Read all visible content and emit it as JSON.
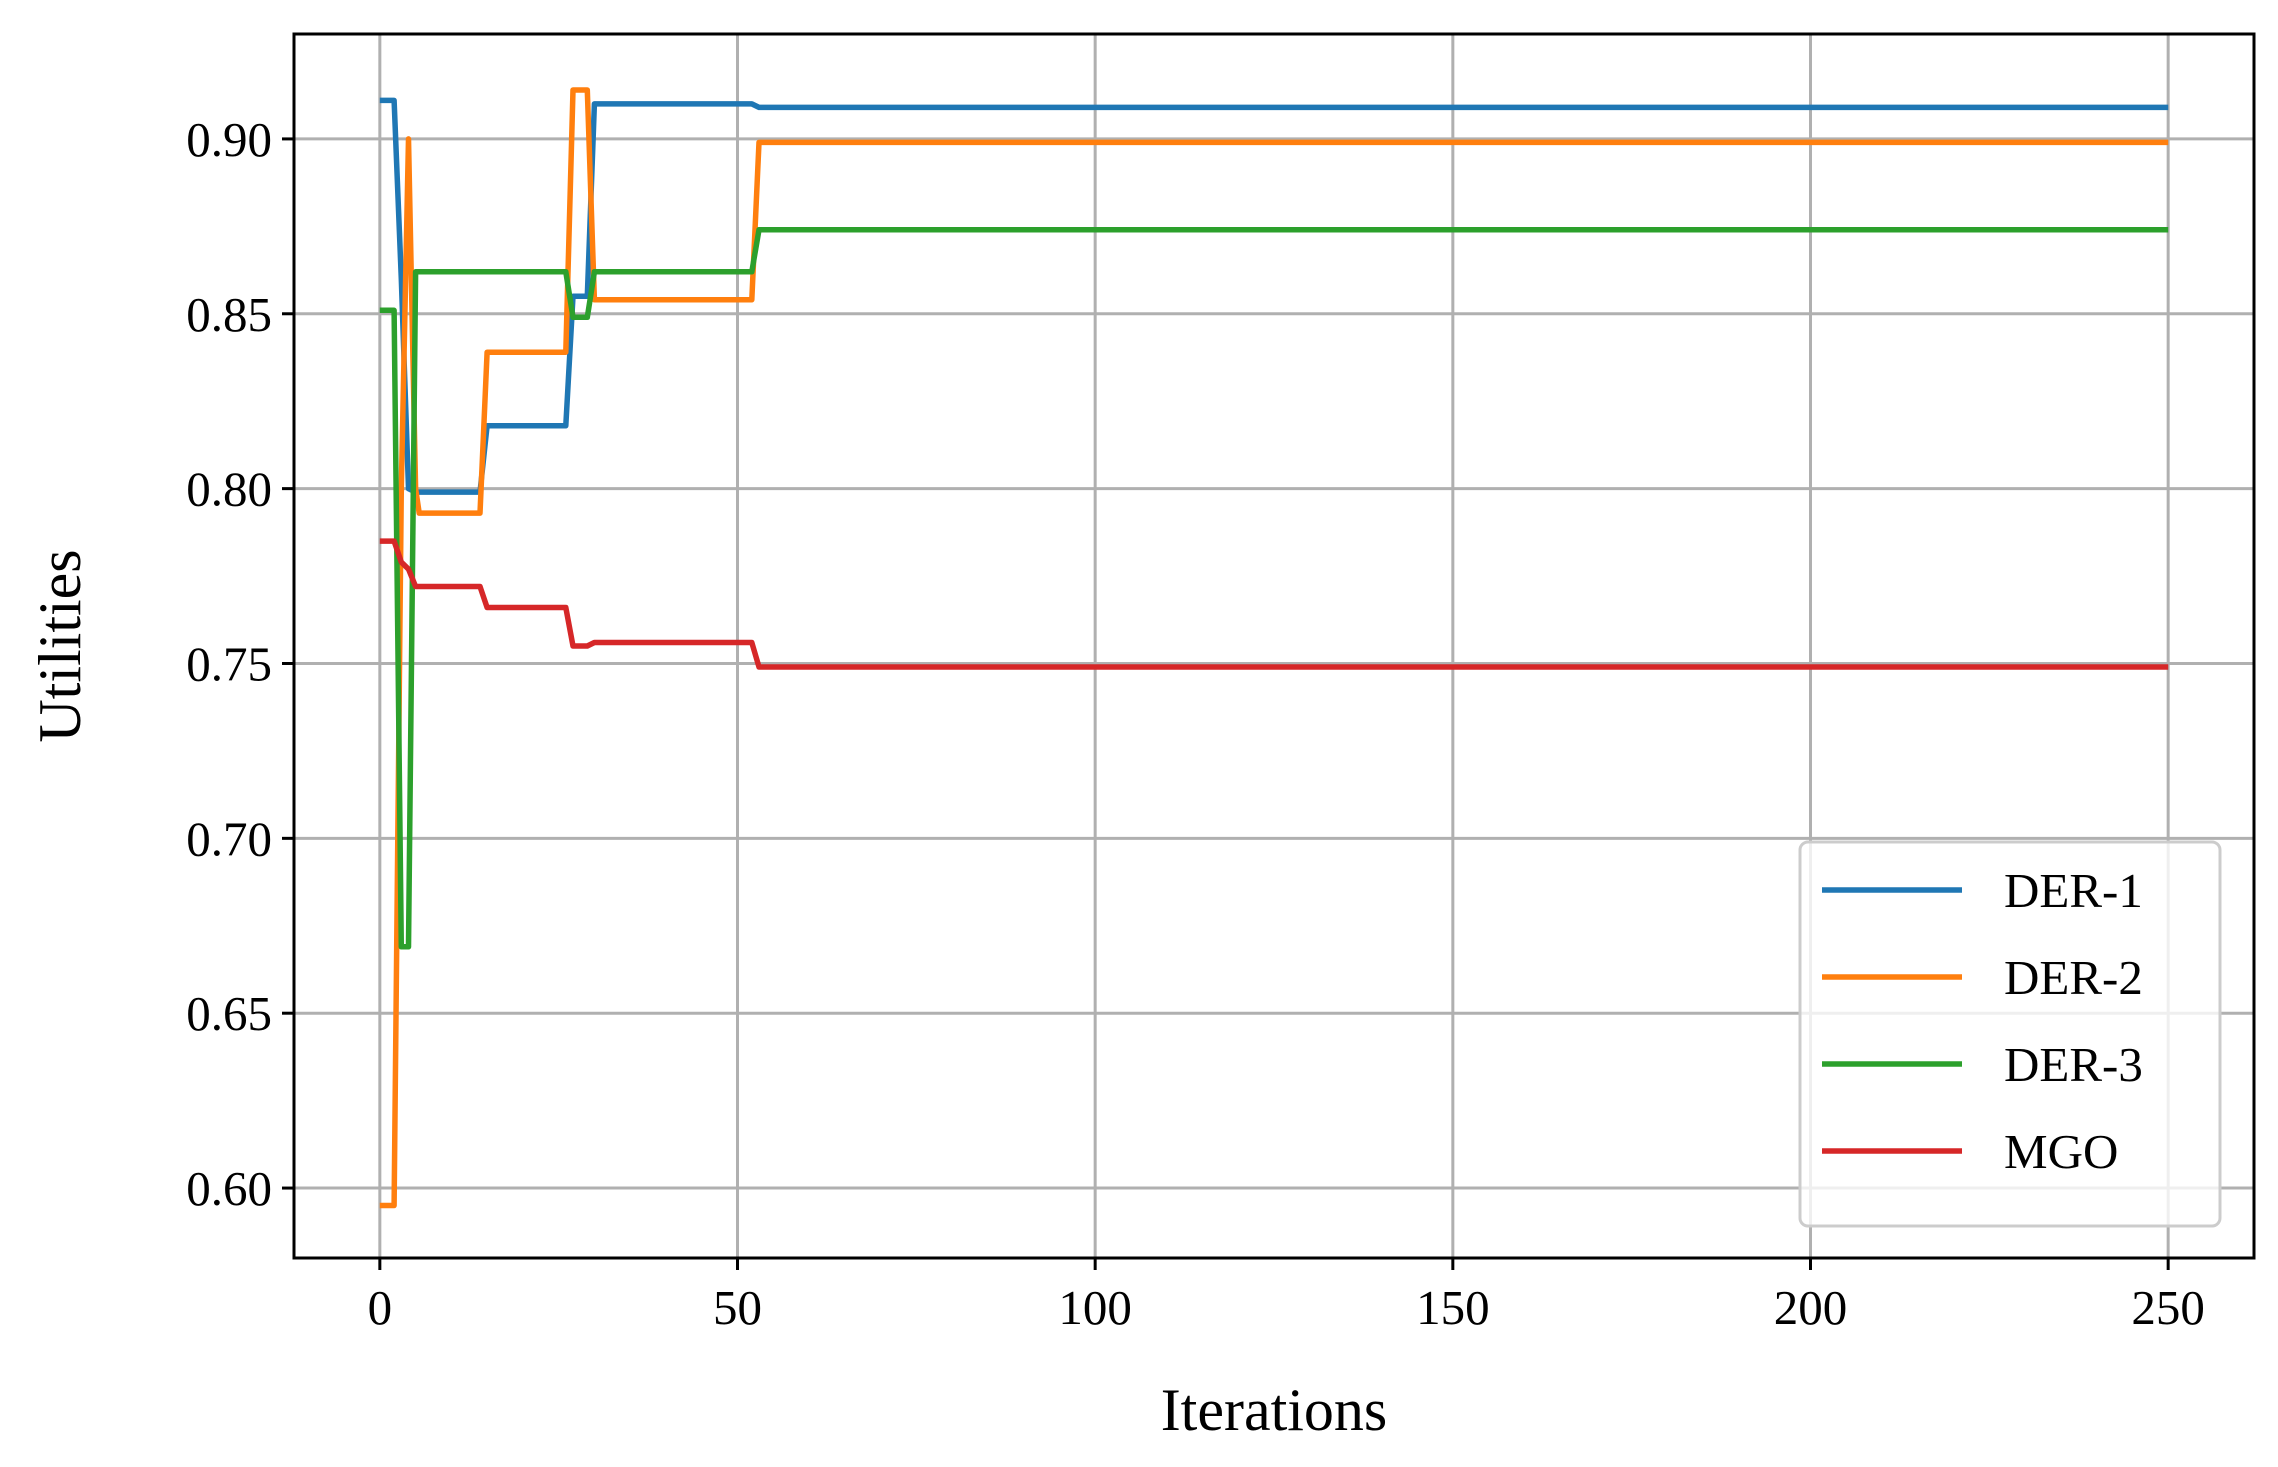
{
  "chart_data": {
    "type": "line",
    "title": "",
    "xlabel": "Iterations",
    "ylabel": "Utilities",
    "xlim": [
      -12,
      262
    ],
    "ylim": [
      0.58,
      0.93
    ],
    "xticks": [
      0,
      50,
      100,
      150,
      200,
      250
    ],
    "yticks": [
      0.6,
      0.65,
      0.7,
      0.75,
      0.8,
      0.85,
      0.9
    ],
    "xtick_labels": [
      "0",
      "50",
      "100",
      "150",
      "200",
      "250"
    ],
    "ytick_labels": [
      "0.60",
      "0.65",
      "0.70",
      "0.75",
      "0.80",
      "0.85",
      "0.90"
    ],
    "grid": true,
    "legend_position": "lower-right",
    "series": [
      {
        "name": "DER-1",
        "color": "#1f77b4",
        "points": [
          [
            0,
            0.911
          ],
          [
            2,
            0.911
          ],
          [
            3,
            0.86
          ],
          [
            4,
            0.8
          ],
          [
            5,
            0.799
          ],
          [
            14,
            0.799
          ],
          [
            15,
            0.818
          ],
          [
            26,
            0.818
          ],
          [
            27,
            0.855
          ],
          [
            29,
            0.855
          ],
          [
            30,
            0.91
          ],
          [
            52,
            0.91
          ],
          [
            53,
            0.909
          ],
          [
            250,
            0.909
          ]
        ]
      },
      {
        "name": "DER-2",
        "color": "#ff7f0e",
        "points": [
          [
            0,
            0.595
          ],
          [
            2,
            0.595
          ],
          [
            3,
            0.8
          ],
          [
            4,
            0.9
          ],
          [
            5,
            0.8
          ],
          [
            5.5,
            0.793
          ],
          [
            14,
            0.793
          ],
          [
            15,
            0.839
          ],
          [
            26,
            0.839
          ],
          [
            27,
            0.914
          ],
          [
            29,
            0.914
          ],
          [
            30,
            0.854
          ],
          [
            52,
            0.854
          ],
          [
            53,
            0.899
          ],
          [
            250,
            0.899
          ]
        ]
      },
      {
        "name": "DER-3",
        "color": "#2ca02c",
        "points": [
          [
            0,
            0.851
          ],
          [
            2,
            0.851
          ],
          [
            3,
            0.669
          ],
          [
            4,
            0.669
          ],
          [
            5,
            0.862
          ],
          [
            15,
            0.862
          ],
          [
            16,
            0.862
          ],
          [
            26,
            0.862
          ],
          [
            27,
            0.849
          ],
          [
            29,
            0.849
          ],
          [
            30,
            0.862
          ],
          [
            52,
            0.862
          ],
          [
            53,
            0.874
          ],
          [
            250,
            0.874
          ]
        ]
      },
      {
        "name": "MGO",
        "color": "#d62728",
        "points": [
          [
            0,
            0.785
          ],
          [
            2,
            0.785
          ],
          [
            3,
            0.779
          ],
          [
            4,
            0.777
          ],
          [
            5,
            0.772
          ],
          [
            14,
            0.772
          ],
          [
            15,
            0.766
          ],
          [
            26,
            0.766
          ],
          [
            27,
            0.755
          ],
          [
            29,
            0.755
          ],
          [
            30,
            0.756
          ],
          [
            52,
            0.756
          ],
          [
            53,
            0.749
          ],
          [
            250,
            0.749
          ]
        ]
      }
    ]
  }
}
